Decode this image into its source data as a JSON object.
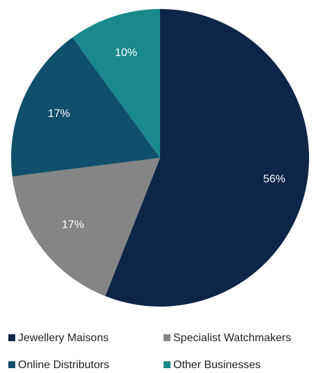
{
  "chart_data": {
    "type": "pie",
    "categories": [
      "Jewellery Maisons",
      "Specialist Watchmakers",
      "Online Distributors",
      "Other Businesses"
    ],
    "values": [
      56,
      17,
      17,
      10
    ],
    "labels": [
      "56%",
      "17%",
      "17%",
      "10%"
    ],
    "colors": [
      "#0d2547",
      "#858585",
      "#11506b",
      "#19898c"
    ],
    "legend_position": "bottom",
    "start_angle_deg": 0,
    "direction": "clockwise"
  }
}
